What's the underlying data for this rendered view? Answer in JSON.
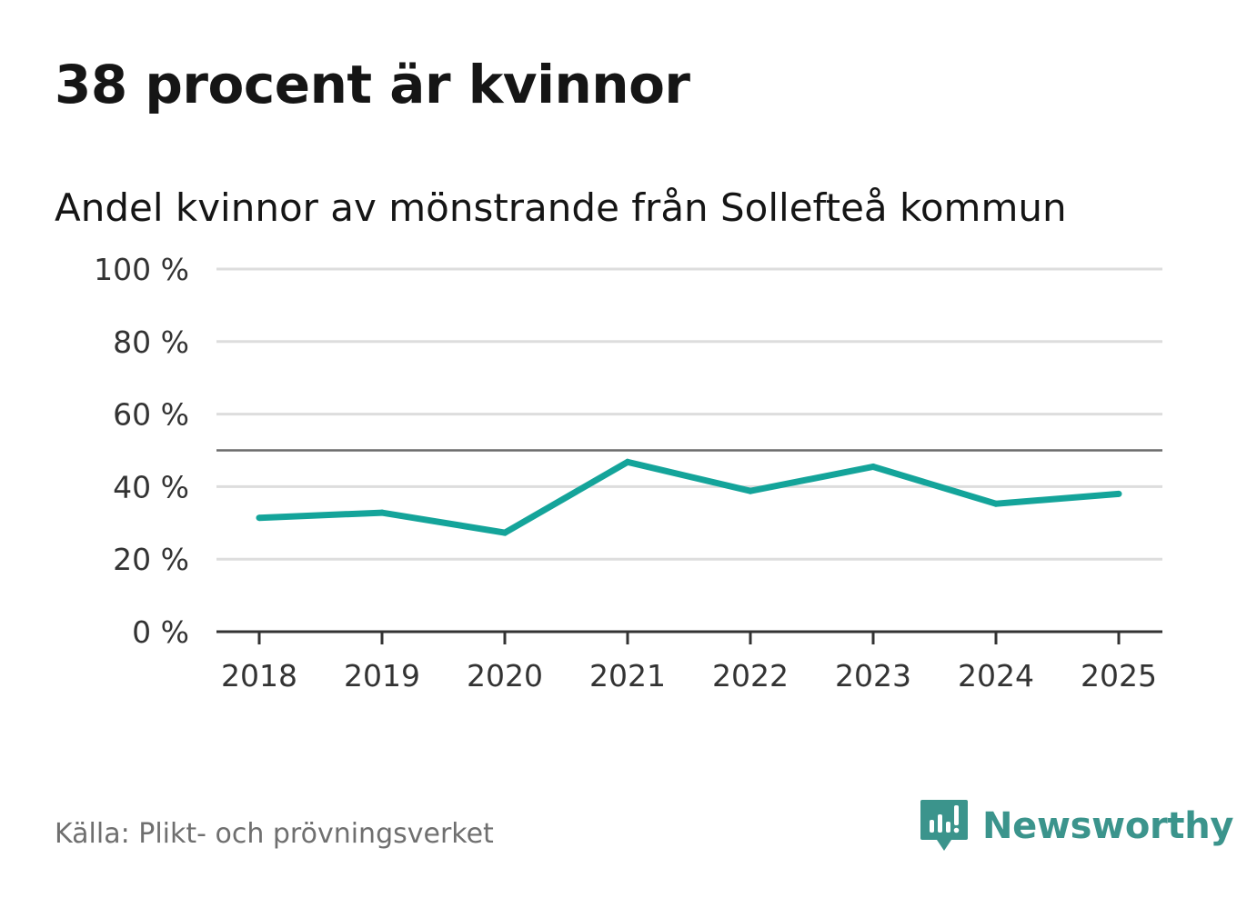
{
  "headline": "38 procent är kvinnor",
  "source": "Källa: Plikt- och prövningsverket",
  "brand": {
    "name": "Newsworthy",
    "icon": "newsworthy-logo-icon",
    "color": "#3b948c"
  },
  "colors": {
    "line": "#14a49a",
    "grid": "#dddddd",
    "reference": "#6b6b6b",
    "axis": "#333333"
  },
  "chart_data": {
    "type": "line",
    "title": "Andel kvinnor av mönstrande från Sollefteå kommun",
    "xlabel": "",
    "ylabel": "",
    "categories": [
      "2018",
      "2019",
      "2020",
      "2021",
      "2022",
      "2023",
      "2024",
      "2025"
    ],
    "series": [
      {
        "name": "Andel kvinnor",
        "values": [
          31.4,
          32.8,
          27.3,
          46.8,
          38.8,
          45.5,
          35.3,
          38.0
        ]
      }
    ],
    "reference_line": 50,
    "ylim": [
      0,
      100
    ],
    "yticks": [
      0,
      20,
      40,
      60,
      80,
      100
    ],
    "ytick_labels": [
      "0 %",
      "20 %",
      "40 %",
      "60 %",
      "80 %",
      "100 %"
    ],
    "grid": true,
    "legend": "none"
  }
}
